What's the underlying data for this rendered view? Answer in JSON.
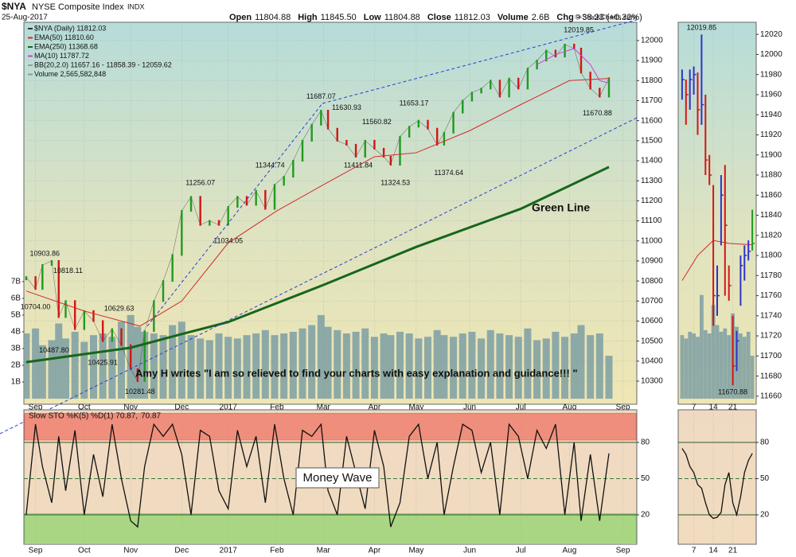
{
  "header": {
    "symbol": "$NYA",
    "name": "NYSE Composite Index",
    "exchange": "INDX",
    "date": "25-Aug-2017",
    "quote": [
      {
        "label": "Open",
        "value": "11804.88"
      },
      {
        "label": "High",
        "value": "11845.50"
      },
      {
        "label": "Low",
        "value": "11804.88"
      },
      {
        "label": "Close",
        "value": "11812.03"
      },
      {
        "label": "Volume",
        "value": "2.6B"
      }
    ],
    "change": {
      "label": "Chg",
      "value": "+38.23 (+0.32%)"
    },
    "credit": "© StockCharts.com"
  },
  "chart_data": [
    {
      "type": "price",
      "xlim": [
        0,
        264
      ],
      "ylim": [
        10185,
        12091
      ],
      "y2lim": [
        -0.33,
        22.5
      ],
      "xticks": [
        {
          "value": 5,
          "label": "Sep"
        },
        {
          "value": 26,
          "label": "Oct"
        },
        {
          "value": 46,
          "label": "Nov"
        },
        {
          "value": 68,
          "label": "Dec"
        },
        {
          "value": 88,
          "label": "2017"
        },
        {
          "value": 109,
          "label": "Feb"
        },
        {
          "value": 129,
          "label": "Mar"
        },
        {
          "value": 151,
          "label": "Apr"
        },
        {
          "value": 169,
          "label": "May"
        },
        {
          "value": 192,
          "label": "Jun"
        },
        {
          "value": 214,
          "label": "Jul"
        },
        {
          "value": 235,
          "label": "Aug"
        },
        {
          "value": 258,
          "label": "Sep"
        }
      ],
      "yticks": [
        10300,
        10400,
        10500,
        10600,
        10700,
        10800,
        10900,
        11000,
        11100,
        11200,
        11300,
        11400,
        11500,
        11600,
        11700,
        11800,
        11900,
        12000
      ],
      "y2ticks": [
        {
          "value": 1,
          "label": "1B"
        },
        {
          "value": 2,
          "label": "2B"
        },
        {
          "value": 3,
          "label": "3B"
        },
        {
          "value": 4,
          "label": "4B"
        },
        {
          "value": 5,
          "label": "5B"
        },
        {
          "value": 6,
          "label": "6B"
        },
        {
          "value": 7,
          "label": "7B"
        }
      ],
      "grid": true,
      "up_color": "#1f9a1f",
      "down_color": "#d41515",
      "series": [
        {
          "name": "$NYA (Daily) 11812.03",
          "style": "bars",
          "color": "#333333",
          "x": [
            1,
            5,
            8,
            12,
            15,
            18,
            22,
            26,
            30,
            34,
            38,
            42,
            46,
            49,
            52,
            56,
            60,
            64,
            68,
            72,
            76,
            80,
            84,
            88,
            92,
            96,
            100,
            104,
            108,
            112,
            116,
            120,
            124,
            128,
            131,
            135,
            139,
            143,
            147,
            151,
            155,
            158,
            162,
            166,
            170,
            174,
            178,
            181,
            185,
            189,
            193,
            197,
            201,
            205,
            209,
            213,
            217,
            221,
            225,
            229,
            233,
            237,
            240,
            244,
            248,
            252
          ],
          "values": [
            10820,
            10760,
            10880,
            10900,
            10620,
            10700,
            10560,
            10650,
            10600,
            10500,
            10560,
            10480,
            10360,
            10300,
            10550,
            10700,
            10800,
            10930,
            11150,
            11220,
            11080,
            11100,
            11080,
            11170,
            11220,
            11180,
            11250,
            11160,
            11280,
            11320,
            11400,
            11500,
            11580,
            11650,
            11560,
            11500,
            11480,
            11420,
            11500,
            11460,
            11420,
            11380,
            11520,
            11570,
            11600,
            11560,
            11480,
            11540,
            11640,
            11700,
            11740,
            11760,
            11800,
            11720,
            11810,
            11760,
            11860,
            11900,
            11950,
            11920,
            11980,
            11960,
            11840,
            11760,
            11720,
            11812.03
          ]
        },
        {
          "name": "EMA(50) 11810.60",
          "color": "#d42a2a",
          "x": [
            1,
            26,
            50,
            68,
            88,
            109,
            129,
            151,
            169,
            192,
            214,
            235,
            252
          ],
          "values": [
            10750,
            10650,
            10575,
            10700,
            10990,
            11150,
            11280,
            11420,
            11440,
            11550,
            11680,
            11800,
            11810.6
          ]
        },
        {
          "name": "EMA(250) 11368.68",
          "color": "#16661a",
          "x": [
            1,
            46,
            68,
            88,
            129,
            169,
            214,
            252
          ],
          "values": [
            10395,
            10467,
            10535,
            10595,
            10780,
            10970,
            11160,
            11368.68
          ]
        },
        {
          "name": "MA(10) 11787.72",
          "color": "#d040d0",
          "x": [
            221,
            229,
            237,
            244,
            248,
            252
          ],
          "values": [
            11880,
            11930,
            11960,
            11880,
            11800,
            11787.72
          ]
        },
        {
          "name": "BB(20,2.0) 11657.16 - 11858.39 - 12059.62",
          "color": "#9a9a9a"
        },
        {
          "name": "Volume 2,565,582,848",
          "color": "#7d9fa3",
          "axis": "y2",
          "x": [
            1,
            5,
            8,
            12,
            15,
            18,
            22,
            26,
            30,
            34,
            38,
            42,
            46,
            49,
            52,
            56,
            60,
            64,
            68,
            72,
            76,
            80,
            84,
            88,
            92,
            96,
            100,
            104,
            108,
            112,
            116,
            120,
            124,
            128,
            131,
            135,
            139,
            143,
            147,
            151,
            155,
            158,
            162,
            166,
            170,
            174,
            178,
            181,
            185,
            189,
            193,
            197,
            201,
            205,
            209,
            213,
            217,
            221,
            225,
            229,
            233,
            237,
            240,
            244,
            248,
            252
          ],
          "values": [
            3.9,
            4.2,
            3.2,
            3.5,
            4.5,
            3.6,
            4.0,
            3.4,
            3.8,
            3.9,
            3.7,
            4.6,
            5.0,
            4.3,
            4.0,
            3.9,
            3.8,
            4.4,
            4.6,
            3.8,
            3.6,
            3.5,
            3.9,
            3.7,
            3.6,
            3.8,
            3.9,
            4.1,
            3.8,
            3.9,
            4.0,
            4.2,
            4.4,
            5.0,
            4.3,
            4.1,
            3.9,
            4.0,
            4.2,
            3.7,
            3.9,
            3.8,
            4.0,
            3.9,
            3.6,
            3.7,
            4.1,
            3.8,
            3.7,
            3.9,
            4.0,
            3.6,
            4.1,
            3.9,
            3.8,
            3.7,
            4.2,
            3.5,
            3.6,
            4.0,
            3.7,
            3.9,
            4.4,
            3.8,
            3.9,
            2.57
          ]
        }
      ],
      "price_labels": [
        {
          "x": 239,
          "label": "12019.85",
          "position": "above"
        },
        {
          "x": 128,
          "label": "11687.07",
          "position": "above"
        },
        {
          "x": 139,
          "label": "11630.93",
          "position": "above"
        },
        {
          "x": 168,
          "label": "11653.17",
          "position": "above"
        },
        {
          "x": 152,
          "label": "11560.82",
          "position": "above"
        },
        {
          "x": 106,
          "label": "11344.74",
          "position": "above"
        },
        {
          "x": 76,
          "label": "11256.07",
          "position": "above"
        },
        {
          "x": 144,
          "label": "11411.84",
          "position": "below"
        },
        {
          "x": 160,
          "label": "11324.53",
          "position": "below"
        },
        {
          "x": 183,
          "label": "11374.64",
          "position": "below"
        },
        {
          "x": 88,
          "label": "11034.05",
          "position": "below"
        },
        {
          "x": 9,
          "label": "10903.86",
          "position": "above"
        },
        {
          "x": 19,
          "label": "10818.11",
          "position": "above"
        },
        {
          "x": 5,
          "label": "10704.00",
          "position": "below"
        },
        {
          "x": 41,
          "label": "10629.63",
          "position": "above"
        },
        {
          "x": 13,
          "label": "10487.80",
          "position": "below"
        },
        {
          "x": 34,
          "label": "10425.91",
          "position": "below"
        },
        {
          "x": 50,
          "label": "10281.48",
          "position": "below"
        },
        {
          "x": 247,
          "label": "11670.88",
          "position": "below"
        }
      ],
      "notes": [
        "Green Line",
        "Amy H writes \"I am so relieved to find your charts with easy explanation and guidance!!! \""
      ]
    },
    {
      "type": "range-bars",
      "xlim": [
        233,
        253
      ],
      "ylim": [
        11652,
        12032
      ],
      "y2lim": [
        -0.33,
        22.5
      ],
      "xticks": [
        {
          "value": 237,
          "label": "7"
        },
        {
          "value": 242,
          "label": "14"
        },
        {
          "value": 247,
          "label": "21"
        }
      ],
      "yticks": [
        11660,
        11680,
        11700,
        11720,
        11740,
        11760,
        11780,
        11800,
        11820,
        11840,
        11860,
        11880,
        11900,
        11920,
        11940,
        11960,
        11980,
        12000,
        12020
      ],
      "up_color": "#2f33c8",
      "down_color": "#d41515",
      "last_color": "#1f9a1f",
      "x": [
        234,
        235,
        236,
        237,
        238,
        239,
        240,
        241,
        242,
        243,
        244,
        245,
        246,
        247,
        248,
        249,
        250,
        251,
        252
      ],
      "high": [
        11985,
        11975,
        11985,
        11988,
        11982,
        12019.85,
        11960,
        11900,
        11870,
        11790,
        11880,
        11890,
        11790,
        11740,
        11725,
        11800,
        11810,
        11815,
        11845.5
      ],
      "low": [
        11955,
        11930,
        11945,
        11960,
        11920,
        11930,
        11880,
        11870,
        11730,
        11740,
        11810,
        11760,
        11755,
        11670.88,
        11685,
        11750,
        11775,
        11795,
        11804.88
      ],
      "close": [
        11975,
        11960,
        11975,
        11980,
        11945,
        11950,
        11895,
        11880,
        11760,
        11760,
        11860,
        11830,
        11770,
        11690,
        11715,
        11790,
        11800,
        11804,
        11812.03
      ],
      "volume": {
        "color": "#7d9fa3",
        "values": [
          3.8,
          3.6,
          4.0,
          3.9,
          3.7,
          6.2,
          4.1,
          3.9,
          5.6,
          4.4,
          4.0,
          4.2,
          3.8,
          5.1,
          4.3,
          3.9,
          3.7,
          4.0,
          2.57
        ]
      },
      "ema": {
        "color": "#d42a2a",
        "x": [
          234,
          238,
          242,
          246,
          252
        ],
        "values": [
          11775,
          11800,
          11815,
          11812,
          11810.6
        ]
      },
      "price_labels": [
        {
          "x": 239,
          "label": "12019.85",
          "position": "above"
        },
        {
          "x": 247,
          "label": "11670.88",
          "position": "below"
        }
      ]
    },
    {
      "type": "oscillator",
      "title": "Slow STO %K(5) %D(1) 70.87,",
      "title_value": "70.87",
      "note": "Money Wave",
      "xlim": [
        0,
        264
      ],
      "ylim": [
        -4.4,
        107
      ],
      "xticks": [
        {
          "value": 5,
          "label": "Sep"
        },
        {
          "value": 26,
          "label": "Oct"
        },
        {
          "value": 46,
          "label": "Nov"
        },
        {
          "value": 68,
          "label": "Dec"
        },
        {
          "value": 88,
          "label": "2017"
        },
        {
          "value": 109,
          "label": "Feb"
        },
        {
          "value": 129,
          "label": "Mar"
        },
        {
          "value": 151,
          "label": "Apr"
        },
        {
          "value": 169,
          "label": "May"
        },
        {
          "value": 192,
          "label": "Jun"
        },
        {
          "value": 214,
          "label": "Jul"
        },
        {
          "value": 235,
          "label": "Aug"
        },
        {
          "value": 258,
          "label": "Sep"
        }
      ],
      "yticks": [
        20,
        50,
        80
      ],
      "zones": [
        {
          "from": 82,
          "to": 104,
          "color": "#ef7464"
        },
        {
          "from": -3,
          "to": 21,
          "color": "#8fd46d"
        }
      ],
      "color": "#111111",
      "x": [
        1,
        5,
        8,
        12,
        15,
        18,
        22,
        26,
        30,
        34,
        38,
        42,
        46,
        49,
        52,
        56,
        60,
        64,
        68,
        72,
        76,
        80,
        84,
        88,
        92,
        96,
        100,
        104,
        108,
        112,
        116,
        120,
        124,
        128,
        131,
        135,
        139,
        143,
        147,
        151,
        155,
        158,
        162,
        166,
        170,
        174,
        178,
        181,
        185,
        189,
        193,
        197,
        201,
        205,
        209,
        213,
        217,
        221,
        225,
        229,
        233,
        237,
        240,
        244,
        248,
        252
      ],
      "values": [
        20,
        95,
        60,
        30,
        85,
        40,
        90,
        20,
        70,
        35,
        95,
        50,
        15,
        10,
        60,
        95,
        85,
        95,
        70,
        20,
        90,
        85,
        40,
        25,
        90,
        60,
        85,
        30,
        95,
        50,
        20,
        90,
        85,
        95,
        40,
        20,
        85,
        55,
        25,
        90,
        60,
        10,
        30,
        85,
        95,
        50,
        80,
        20,
        60,
        95,
        90,
        55,
        80,
        20,
        95,
        85,
        50,
        90,
        75,
        95,
        20,
        80,
        15,
        70,
        15,
        70.87
      ]
    },
    {
      "type": "oscillator",
      "xlim": [
        233,
        253
      ],
      "ylim": [
        -4.4,
        107
      ],
      "xticks": [
        {
          "value": 237,
          "label": "7"
        },
        {
          "value": 242,
          "label": "14"
        },
        {
          "value": 247,
          "label": "21"
        }
      ],
      "yticks": [
        20,
        50,
        80
      ],
      "color": "#111111",
      "x": [
        234,
        235,
        236,
        237,
        238,
        239,
        240,
        241,
        242,
        243,
        244,
        245,
        246,
        247,
        248,
        249,
        250,
        251,
        252
      ],
      "values": [
        75,
        70,
        60,
        55,
        45,
        42,
        30,
        20,
        17,
        18,
        22,
        45,
        55,
        30,
        20,
        35,
        55,
        65,
        70.87
      ]
    }
  ]
}
